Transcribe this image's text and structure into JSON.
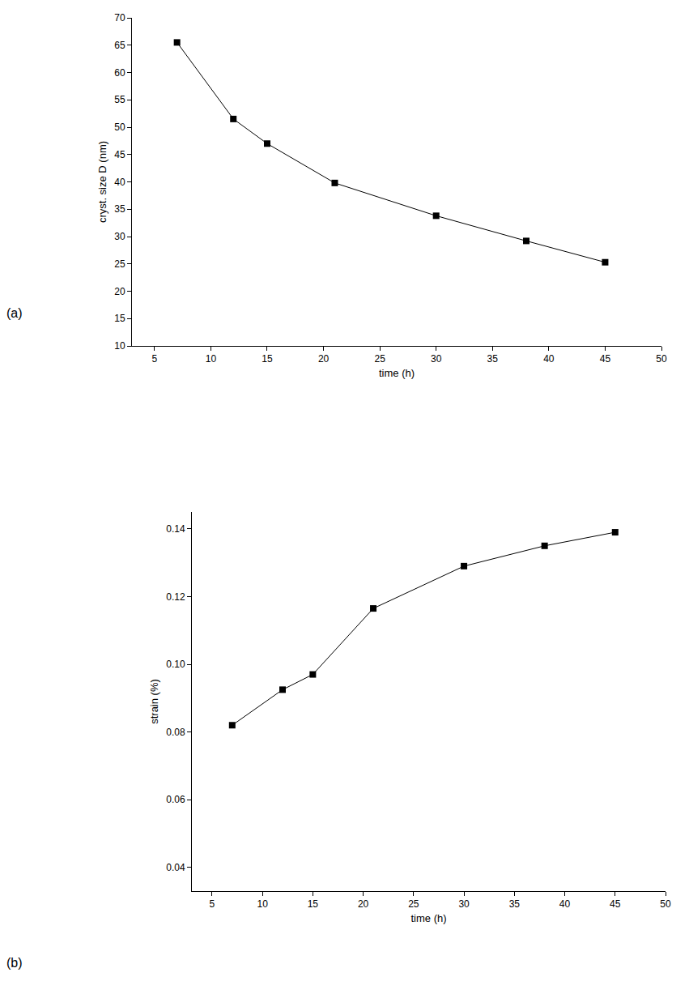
{
  "chart_data": [
    {
      "type": "line",
      "panel": "(a)",
      "x_label": "time (h)",
      "y_label": "cryst. size D (nm)",
      "x": [
        7,
        12,
        15,
        21,
        30,
        38,
        45
      ],
      "values": [
        65.5,
        51.5,
        47.0,
        39.8,
        33.8,
        29.2,
        25.3
      ],
      "color": "#000000",
      "marker": "square",
      "line_style": "solid",
      "xlim": [
        3,
        50
      ],
      "xticks": [
        5,
        10,
        15,
        20,
        25,
        30,
        35,
        40,
        45,
        50
      ],
      "ylim": [
        10,
        70
      ],
      "yticks": [
        10,
        15,
        20,
        25,
        30,
        35,
        40,
        45,
        50,
        55,
        60,
        65,
        70
      ],
      "grid": false
    },
    {
      "type": "line",
      "panel": "(b)",
      "x_label": "time (h)",
      "y_label": "strain (%)",
      "x": [
        7,
        12,
        15,
        21,
        30,
        38,
        45
      ],
      "values": [
        0.082,
        0.0925,
        0.097,
        0.1165,
        0.129,
        0.135,
        0.139
      ],
      "color": "#000000",
      "marker": "square",
      "line_style": "solid",
      "xlim": [
        3,
        50
      ],
      "xticks": [
        5,
        10,
        15,
        20,
        25,
        30,
        35,
        40,
        45,
        50
      ],
      "ylim": [
        0.033,
        0.145
      ],
      "yticks": [
        0.04,
        0.06,
        0.08,
        {
          "value": 0.1,
          "label": "0.10"
        },
        0.12,
        0.14
      ],
      "grid": false
    }
  ]
}
